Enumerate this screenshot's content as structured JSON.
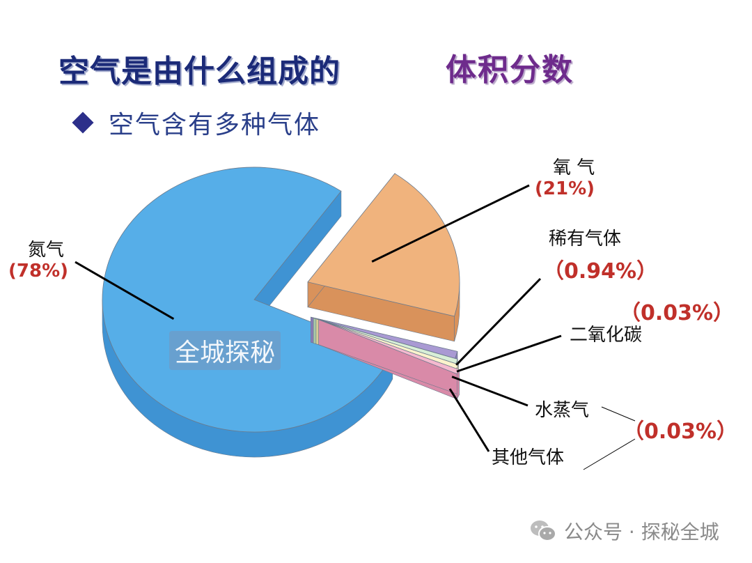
{
  "title": "空气是由什么组成的",
  "subtitle": "体积分数",
  "bullet": "空气含有多种气体",
  "chart_data": {
    "type": "pie",
    "title": "",
    "slices": [
      {
        "name": "氮气",
        "value": 78,
        "label": "(78%)",
        "color": "#56aee8",
        "side": "#3f93d3",
        "exploded": false
      },
      {
        "name": "氧 气",
        "value": 21,
        "label": "(21%)",
        "color": "#f0b37d",
        "side": "#d9925b",
        "exploded": true
      },
      {
        "name": "稀有气体",
        "value": 0.94,
        "label": "（0.94%）",
        "color": "#a99ad3",
        "side": "#8a7bb7",
        "exploded": true
      },
      {
        "name": "二氧化碳",
        "value": 0.03,
        "label": "（0.03%）",
        "color": "#d8efd7",
        "side": "#a9c9a8",
        "exploded": true
      },
      {
        "name": "水蒸气",
        "value": 0.03,
        "label": "（0.03%）",
        "color": "#fbf3cc",
        "side": "#d7cc96",
        "exploded": true
      },
      {
        "name": "其他气体",
        "value": 0.03,
        "label": "",
        "color": "#f5b9cf",
        "side": "#d98aa8",
        "exploded": true
      }
    ],
    "grouped_note": {
      "label": "（0.03%）",
      "applies_to": [
        "水蒸气",
        "其他气体"
      ]
    }
  },
  "watermark": "全城探秘",
  "footer": {
    "text": "公众号 · 探秘全城",
    "icon": "wechat-icon"
  }
}
